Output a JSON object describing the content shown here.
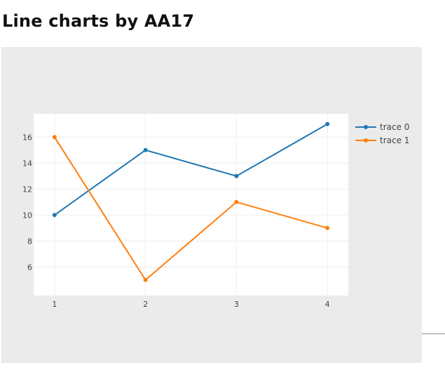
{
  "page": {
    "title": "Line charts by AA17"
  },
  "chart_data": {
    "type": "line",
    "title": "",
    "xlabel": "",
    "ylabel": "",
    "x": [
      1,
      2,
      3,
      4
    ],
    "xlim": [
      0.77,
      4.23
    ],
    "ylim": [
      3.8,
      17.8
    ],
    "xticks": [
      1,
      2,
      3,
      4
    ],
    "yticks": [
      6,
      8,
      10,
      12,
      14,
      16
    ],
    "grid": true,
    "legend_position": "top-right",
    "series": [
      {
        "name": "trace 0",
        "color": "#1f77b4",
        "values": [
          10,
          15,
          13,
          17
        ]
      },
      {
        "name": "trace 1",
        "color": "#ff7f0e",
        "values": [
          16,
          5,
          11,
          9
        ]
      }
    ]
  }
}
